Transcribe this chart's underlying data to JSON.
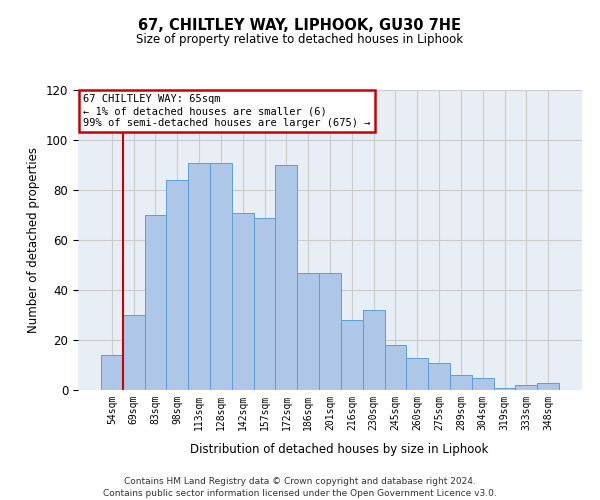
{
  "title1": "67, CHILTLEY WAY, LIPHOOK, GU30 7HE",
  "title2": "Size of property relative to detached houses in Liphook",
  "xlabel": "Distribution of detached houses by size in Liphook",
  "ylabel": "Number of detached properties",
  "bar_labels": [
    "54sqm",
    "69sqm",
    "83sqm",
    "98sqm",
    "113sqm",
    "128sqm",
    "142sqm",
    "157sqm",
    "172sqm",
    "186sqm",
    "201sqm",
    "216sqm",
    "230sqm",
    "245sqm",
    "260sqm",
    "275sqm",
    "289sqm",
    "304sqm",
    "319sqm",
    "333sqm",
    "348sqm"
  ],
  "bar_values": [
    14,
    30,
    70,
    84,
    91,
    91,
    71,
    69,
    90,
    47,
    47,
    28,
    32,
    18,
    13,
    11,
    6,
    5,
    1,
    2,
    3
  ],
  "bar_color": "#aec6e8",
  "bar_edge_color": "#5a9fd4",
  "annotation_line1": "67 CHILTLEY WAY: 65sqm",
  "annotation_line2": "← 1% of detached houses are smaller (6)",
  "annotation_line3": "99% of semi-detached houses are larger (675) →",
  "annotation_box_color": "#ffffff",
  "annotation_box_edge_color": "#cc0000",
  "ylim": [
    0,
    120
  ],
  "yticks": [
    0,
    20,
    40,
    60,
    80,
    100,
    120
  ],
  "grid_color": "#cccccc",
  "bg_color": "#e8eef5",
  "footer1": "Contains HM Land Registry data © Crown copyright and database right 2024.",
  "footer2": "Contains public sector information licensed under the Open Government Licence v3.0."
}
